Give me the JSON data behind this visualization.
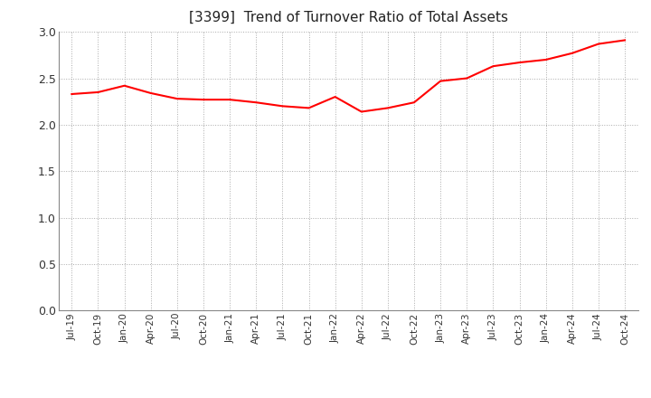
{
  "title": "[3399]  Trend of Turnover Ratio of Total Assets",
  "line_color": "#FF0000",
  "line_width": 1.5,
  "background_color": "#FFFFFF",
  "grid_color": "#AAAAAA",
  "ylim": [
    0.0,
    3.0
  ],
  "yticks": [
    0.0,
    0.5,
    1.0,
    1.5,
    2.0,
    2.5,
    3.0
  ],
  "x_labels": [
    "Jul-19",
    "Oct-19",
    "Jan-20",
    "Apr-20",
    "Jul-20",
    "Oct-20",
    "Jan-21",
    "Apr-21",
    "Jul-21",
    "Oct-21",
    "Jan-22",
    "Apr-22",
    "Jul-22",
    "Oct-22",
    "Jan-23",
    "Apr-23",
    "Jul-23",
    "Oct-23",
    "Jan-24",
    "Apr-24",
    "Jul-24",
    "Oct-24"
  ],
  "data": [
    2.33,
    2.35,
    2.42,
    2.34,
    2.28,
    2.27,
    2.27,
    2.24,
    2.2,
    2.18,
    2.3,
    2.14,
    2.18,
    2.24,
    2.47,
    2.5,
    2.63,
    2.67,
    2.7,
    2.77,
    2.87,
    2.91
  ]
}
